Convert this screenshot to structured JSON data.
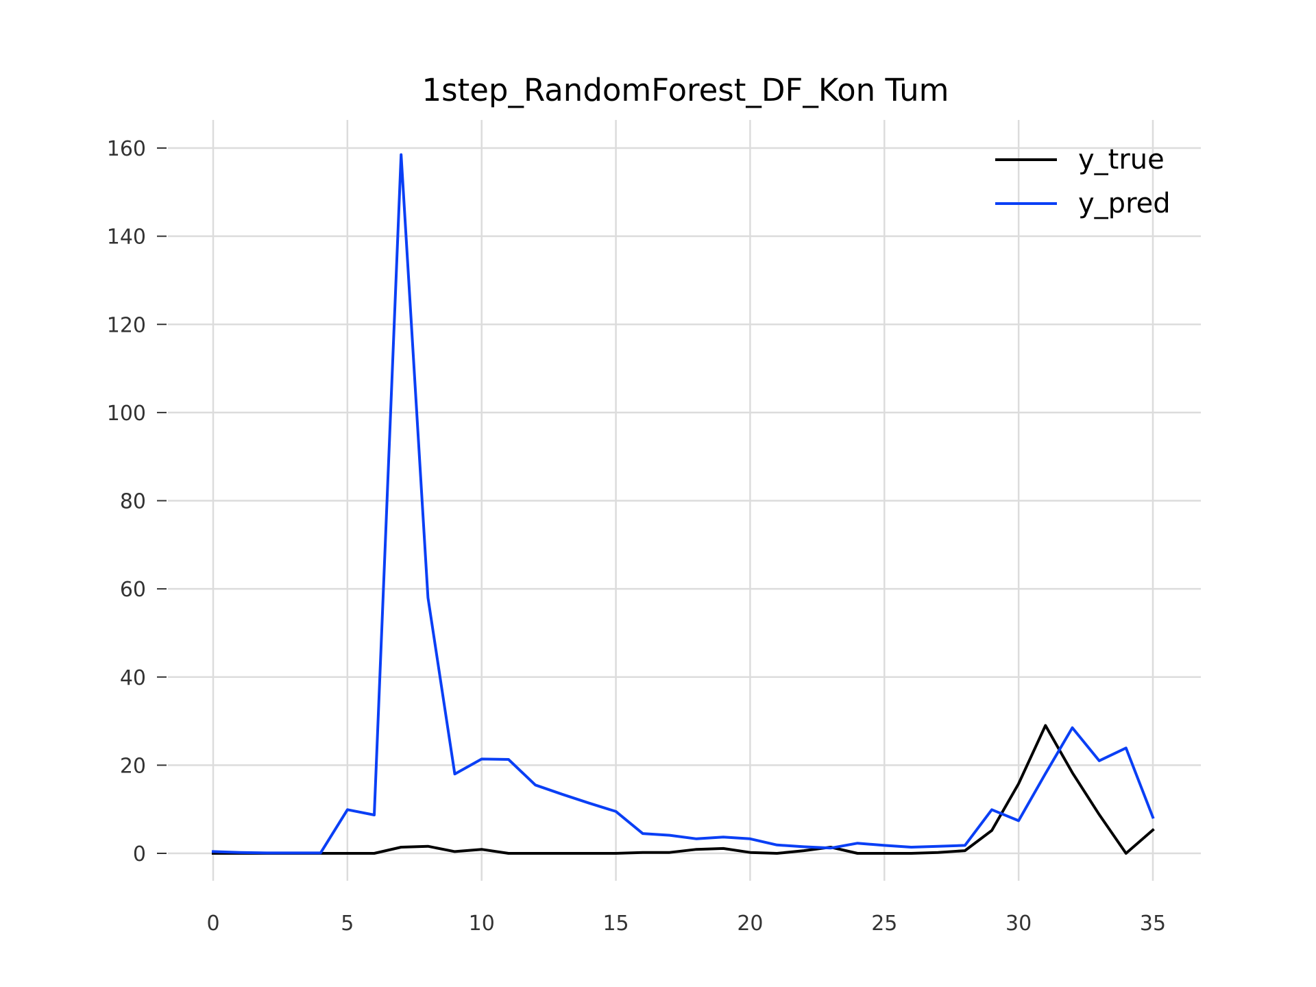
{
  "chart_data": {
    "type": "line",
    "title": "1step_RandomForest_DF_Kon Tum",
    "xlabel": "",
    "ylabel": "",
    "xlim": [
      0,
      35
    ],
    "ylim": [
      0,
      160
    ],
    "grid": true,
    "legend_position": "top-right",
    "x_ticks": [
      0,
      5,
      10,
      15,
      20,
      25,
      30,
      35
    ],
    "y_ticks": [
      0,
      20,
      40,
      60,
      80,
      100,
      120,
      140,
      160
    ],
    "x": [
      0,
      1,
      2,
      3,
      4,
      5,
      6,
      7,
      8,
      9,
      10,
      11,
      12,
      13,
      14,
      15,
      16,
      17,
      18,
      19,
      20,
      21,
      22,
      23,
      24,
      25,
      26,
      27,
      28,
      29,
      30,
      31,
      32,
      33,
      34,
      35
    ],
    "series": [
      {
        "name": "y_true",
        "color": "#000000",
        "values": [
          0,
          0,
          0,
          0,
          0,
          0,
          0,
          1.4,
          1.6,
          0.4,
          0.9,
          0,
          0,
          0,
          0,
          0,
          0.2,
          0.2,
          0.9,
          1.1,
          0.2,
          0,
          0.6,
          1.4,
          0,
          0,
          0,
          0.2,
          0.6,
          5.2,
          15.8,
          29,
          18.3,
          8.8,
          0,
          5.3
        ]
      },
      {
        "name": "y_pred",
        "color": "#0a3ff5",
        "values": [
          0.4,
          0.2,
          0.1,
          0.1,
          0.1,
          9.9,
          8.7,
          158.5,
          58,
          18,
          21.4,
          21.3,
          15.5,
          13.4,
          11.4,
          9.5,
          4.5,
          4.1,
          3.3,
          3.7,
          3.3,
          1.9,
          1.5,
          1.2,
          2.3,
          1.8,
          1.4,
          1.6,
          1.8,
          9.9,
          7.4,
          18.1,
          28.5,
          21,
          23.9,
          8.2
        ]
      }
    ]
  }
}
